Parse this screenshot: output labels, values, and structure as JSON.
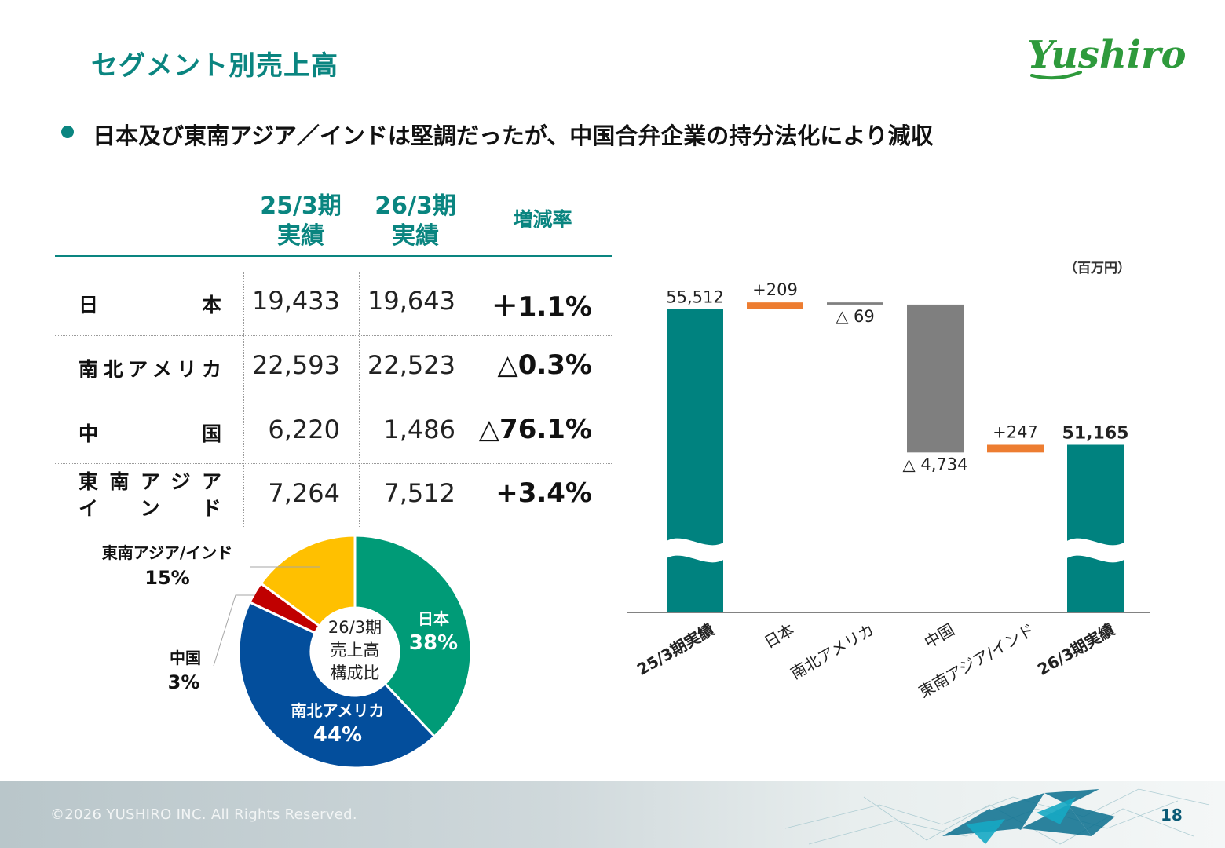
{
  "header": {
    "title": "セグメント別売上高",
    "logo_text": "Yushiro"
  },
  "headline": "日本及び東南アジア／インドは堅調だったが、中国合弁企業の持分法化により減収",
  "table": {
    "columns": {
      "prev_line1": "25/3期",
      "prev_line2": "実績",
      "curr_line1": "26/3期",
      "curr_line2": "実績",
      "rate": "増減率"
    },
    "rows": [
      {
        "label": "日本",
        "label_line2": "",
        "prev": "19,433",
        "curr": "19,643",
        "rate": "＋1.1%"
      },
      {
        "label": "南北アメリカ",
        "label_line2": "",
        "prev": "22,593",
        "curr": "22,523",
        "rate": "△0.3%"
      },
      {
        "label": "中国",
        "label_line2": "",
        "prev": "6,220",
        "curr": "1,486",
        "rate": "△76.1%"
      },
      {
        "label": "東南アジア",
        "label_line2": "インド",
        "prev": "7,264",
        "curr": "7,512",
        "rate": "+3.4%"
      }
    ]
  },
  "chart_data": [
    {
      "type": "pie",
      "center_label": [
        "26/3期",
        "売上高",
        "構成比"
      ],
      "slices": [
        {
          "name": "日本",
          "value": 38,
          "label": "38%",
          "color": "#009b77"
        },
        {
          "name": "南北アメリカ",
          "value": 44,
          "label": "44%",
          "color": "#034e9c"
        },
        {
          "name": "中国",
          "value": 3,
          "label": "3%",
          "color": "#c00000"
        },
        {
          "name": "東南アジア/インド",
          "value": 15,
          "label": "15%",
          "color": "#ffc000"
        }
      ]
    },
    {
      "type": "bar",
      "subtype": "waterfall",
      "unit": "（百万円）",
      "axis_break": true,
      "categories": [
        "25/3期実績",
        "日本",
        "南北アメリカ",
        "中国",
        "東南アジア/インド",
        "26/3期実績"
      ],
      "steps": [
        {
          "kind": "total",
          "value": 55512,
          "label": "55,512",
          "color": "#00827f"
        },
        {
          "kind": "delta",
          "value": 209,
          "label": "+209",
          "color": "#ed7d31"
        },
        {
          "kind": "delta",
          "value": -69,
          "label": "△ 69",
          "color": "#7f7f7f"
        },
        {
          "kind": "delta",
          "value": -4734,
          "label": "△ 4,734",
          "color": "#7f7f7f"
        },
        {
          "kind": "delta",
          "value": 247,
          "label": "+247",
          "color": "#ed7d31"
        },
        {
          "kind": "total",
          "value": 51165,
          "label": "51,165",
          "color": "#00827f"
        }
      ]
    }
  ],
  "footer": {
    "copyright": "©2026 YUSHIRO INC. All Rights Reserved.",
    "page_number": "18"
  }
}
